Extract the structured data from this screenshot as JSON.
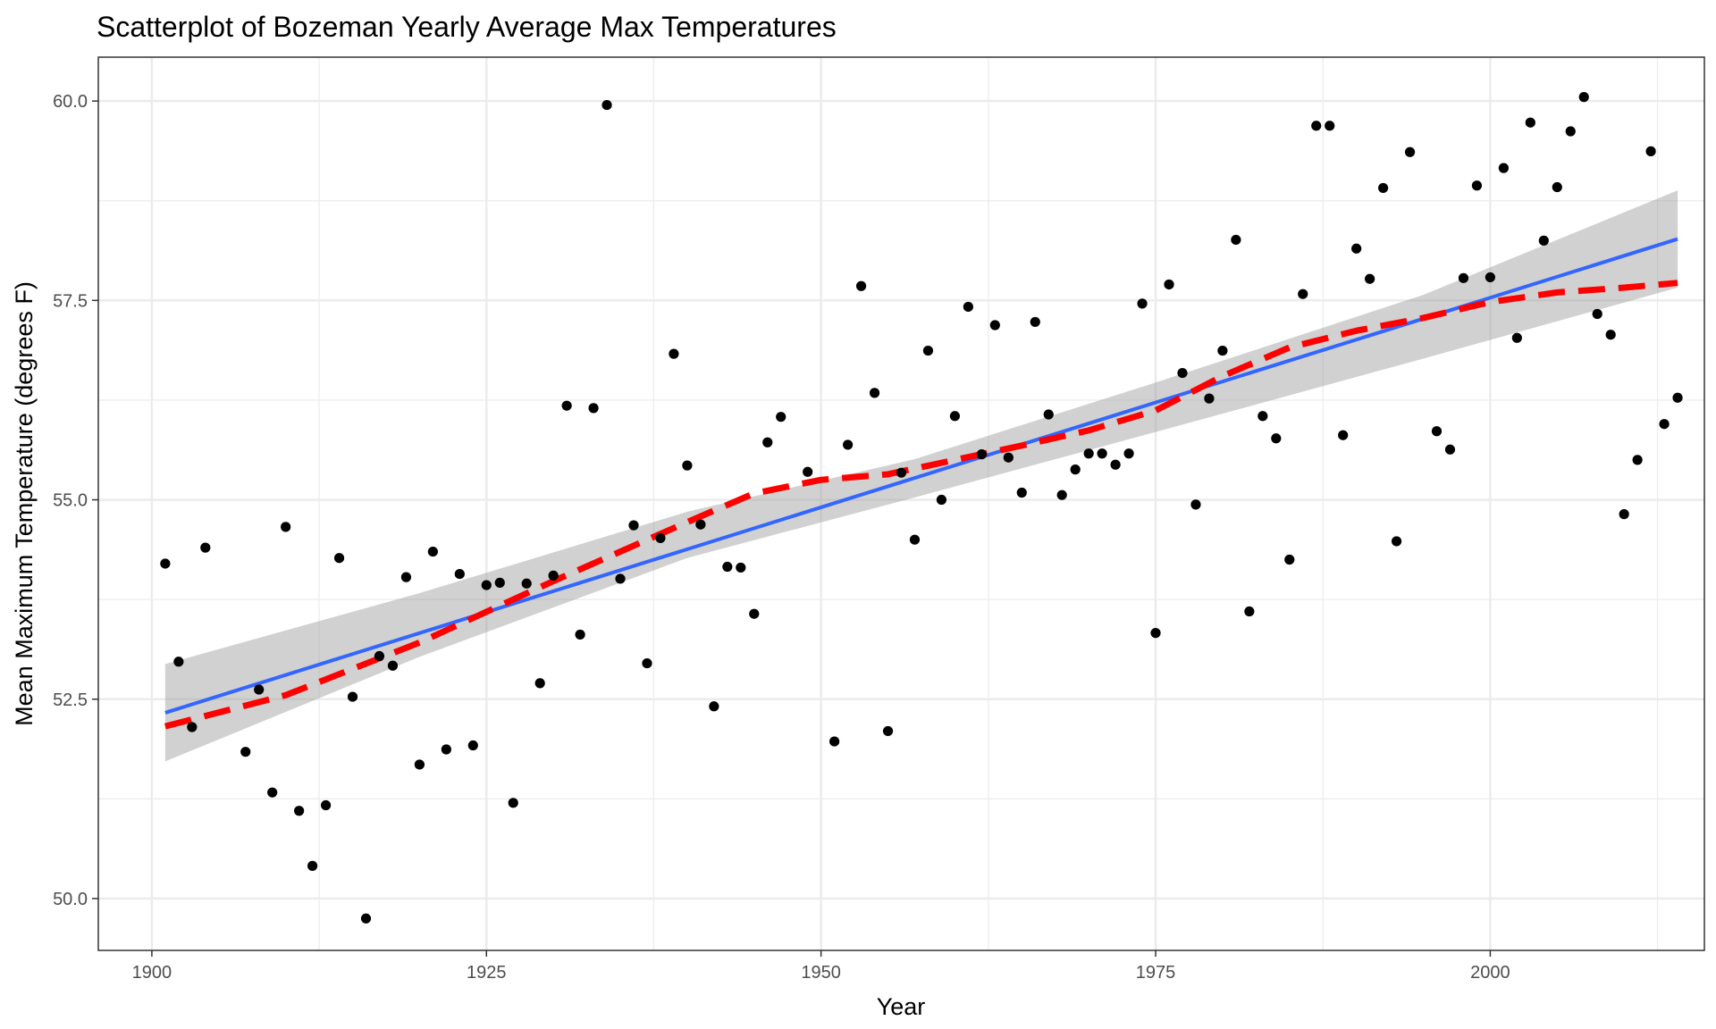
{
  "chart_data": {
    "type": "scatter",
    "title": "Scatterplot of Bozeman Yearly Average Max Temperatures",
    "xlabel": "Year",
    "ylabel": "Mean Maximum Temperature (degrees F)",
    "xlim": [
      1896,
      2016
    ],
    "ylim": [
      49.35,
      60.55
    ],
    "x_ticks": [
      1900,
      1925,
      1950,
      1975,
      2000
    ],
    "y_ticks": [
      50.0,
      52.5,
      55.0,
      57.5,
      60.0
    ],
    "x_tick_labels": [
      "1900",
      "1925",
      "1950",
      "1975",
      "2000"
    ],
    "y_tick_labels": [
      "50.0",
      "52.5",
      "55.0",
      "57.5",
      "60.0"
    ],
    "grid": true,
    "colors": {
      "points": "#000000",
      "linear_fit": "#3366ff",
      "smooth_fit": "#ff0000",
      "confidence_band": "#999999",
      "grid": "#ebebeb",
      "panel_border": "#333333"
    },
    "points": [
      {
        "x": 1901,
        "y": 54.2
      },
      {
        "x": 1902,
        "y": 52.97
      },
      {
        "x": 1903,
        "y": 52.15
      },
      {
        "x": 1904,
        "y": 54.4
      },
      {
        "x": 1907,
        "y": 51.84
      },
      {
        "x": 1908,
        "y": 52.62
      },
      {
        "x": 1909,
        "y": 51.33
      },
      {
        "x": 1910,
        "y": 54.66
      },
      {
        "x": 1911,
        "y": 51.1
      },
      {
        "x": 1912,
        "y": 50.41
      },
      {
        "x": 1913,
        "y": 51.17
      },
      {
        "x": 1914,
        "y": 54.27
      },
      {
        "x": 1915,
        "y": 52.53
      },
      {
        "x": 1916,
        "y": 49.75
      },
      {
        "x": 1917,
        "y": 53.04
      },
      {
        "x": 1918,
        "y": 52.92
      },
      {
        "x": 1919,
        "y": 54.03
      },
      {
        "x": 1920,
        "y": 51.68
      },
      {
        "x": 1921,
        "y": 54.35
      },
      {
        "x": 1922,
        "y": 51.87
      },
      {
        "x": 1923,
        "y": 54.07
      },
      {
        "x": 1924,
        "y": 51.92
      },
      {
        "x": 1925,
        "y": 53.93
      },
      {
        "x": 1926,
        "y": 53.96
      },
      {
        "x": 1927,
        "y": 51.2
      },
      {
        "x": 1928,
        "y": 53.95
      },
      {
        "x": 1929,
        "y": 52.7
      },
      {
        "x": 1930,
        "y": 54.05
      },
      {
        "x": 1931,
        "y": 56.18
      },
      {
        "x": 1932,
        "y": 53.31
      },
      {
        "x": 1933,
        "y": 56.15
      },
      {
        "x": 1934,
        "y": 59.95
      },
      {
        "x": 1935,
        "y": 54.01
      },
      {
        "x": 1936,
        "y": 54.68
      },
      {
        "x": 1937,
        "y": 52.95
      },
      {
        "x": 1938,
        "y": 54.52
      },
      {
        "x": 1939,
        "y": 56.83
      },
      {
        "x": 1940,
        "y": 55.43
      },
      {
        "x": 1941,
        "y": 54.69
      },
      {
        "x": 1942,
        "y": 52.41
      },
      {
        "x": 1943,
        "y": 54.16
      },
      {
        "x": 1944,
        "y": 54.15
      },
      {
        "x": 1945,
        "y": 53.57
      },
      {
        "x": 1946,
        "y": 55.72
      },
      {
        "x": 1947,
        "y": 56.04
      },
      {
        "x": 1949,
        "y": 55.35
      },
      {
        "x": 1951,
        "y": 51.97
      },
      {
        "x": 1952,
        "y": 55.69
      },
      {
        "x": 1953,
        "y": 57.68
      },
      {
        "x": 1954,
        "y": 56.34
      },
      {
        "x": 1955,
        "y": 52.1
      },
      {
        "x": 1956,
        "y": 55.34
      },
      {
        "x": 1957,
        "y": 54.5
      },
      {
        "x": 1958,
        "y": 56.87
      },
      {
        "x": 1959,
        "y": 55.0
      },
      {
        "x": 1960,
        "y": 56.05
      },
      {
        "x": 1961,
        "y": 57.42
      },
      {
        "x": 1962,
        "y": 55.57
      },
      {
        "x": 1963,
        "y": 57.19
      },
      {
        "x": 1964,
        "y": 55.53
      },
      {
        "x": 1965,
        "y": 55.09
      },
      {
        "x": 1966,
        "y": 57.23
      },
      {
        "x": 1967,
        "y": 56.07
      },
      {
        "x": 1968,
        "y": 55.06
      },
      {
        "x": 1969,
        "y": 55.38
      },
      {
        "x": 1970,
        "y": 55.58
      },
      {
        "x": 1971,
        "y": 55.58
      },
      {
        "x": 1972,
        "y": 55.44
      },
      {
        "x": 1973,
        "y": 55.58
      },
      {
        "x": 1974,
        "y": 57.46
      },
      {
        "x": 1975,
        "y": 53.33
      },
      {
        "x": 1976,
        "y": 57.7
      },
      {
        "x": 1977,
        "y": 56.59
      },
      {
        "x": 1978,
        "y": 54.94
      },
      {
        "x": 1979,
        "y": 56.27
      },
      {
        "x": 1980,
        "y": 56.87
      },
      {
        "x": 1981,
        "y": 58.26
      },
      {
        "x": 1982,
        "y": 53.6
      },
      {
        "x": 1983,
        "y": 56.05
      },
      {
        "x": 1984,
        "y": 55.77
      },
      {
        "x": 1985,
        "y": 54.25
      },
      {
        "x": 1986,
        "y": 57.58
      },
      {
        "x": 1987,
        "y": 59.69
      },
      {
        "x": 1988,
        "y": 59.69
      },
      {
        "x": 1989,
        "y": 55.81
      },
      {
        "x": 1990,
        "y": 58.15
      },
      {
        "x": 1991,
        "y": 57.77
      },
      {
        "x": 1992,
        "y": 58.91
      },
      {
        "x": 1993,
        "y": 54.48
      },
      {
        "x": 1994,
        "y": 59.36
      },
      {
        "x": 1996,
        "y": 55.86
      },
      {
        "x": 1997,
        "y": 55.63
      },
      {
        "x": 1998,
        "y": 57.78
      },
      {
        "x": 1999,
        "y": 58.94
      },
      {
        "x": 2000,
        "y": 57.79
      },
      {
        "x": 2001,
        "y": 59.16
      },
      {
        "x": 2002,
        "y": 57.03
      },
      {
        "x": 2003,
        "y": 59.73
      },
      {
        "x": 2004,
        "y": 58.25
      },
      {
        "x": 2005,
        "y": 58.92
      },
      {
        "x": 2006,
        "y": 59.62
      },
      {
        "x": 2007,
        "y": 60.05
      },
      {
        "x": 2008,
        "y": 57.33
      },
      {
        "x": 2009,
        "y": 57.07
      },
      {
        "x": 2010,
        "y": 54.82
      },
      {
        "x": 2011,
        "y": 55.5
      },
      {
        "x": 2012,
        "y": 59.37
      },
      {
        "x": 2013,
        "y": 55.95
      },
      {
        "x": 2014,
        "y": 56.28
      }
    ],
    "linear_fit": {
      "x": [
        1901,
        2014
      ],
      "y": [
        52.33,
        58.27
      ]
    },
    "confidence_band": [
      {
        "x": 1901,
        "lower": 51.72,
        "upper": 52.94
      },
      {
        "x": 1920,
        "lower": 53.03,
        "upper": 53.83
      },
      {
        "x": 1940,
        "lower": 54.27,
        "upper": 54.85
      },
      {
        "x": 1957,
        "lower": 55.03,
        "upper": 55.51
      },
      {
        "x": 1975,
        "lower": 55.85,
        "upper": 56.47
      },
      {
        "x": 1995,
        "lower": 56.77,
        "upper": 57.57
      },
      {
        "x": 2014,
        "lower": 57.66,
        "upper": 58.88
      }
    ],
    "smooth_fit": {
      "x": [
        1901,
        1910,
        1920,
        1930,
        1940,
        1945,
        1950,
        1955,
        1960,
        1965,
        1970,
        1975,
        1980,
        1985,
        1990,
        1995,
        2000,
        2005,
        2010,
        2014
      ],
      "y": [
        52.16,
        52.55,
        53.21,
        53.98,
        54.72,
        55.08,
        55.25,
        55.32,
        55.5,
        55.68,
        55.87,
        56.12,
        56.55,
        56.91,
        57.12,
        57.28,
        57.48,
        57.6,
        57.66,
        57.72
      ]
    }
  }
}
